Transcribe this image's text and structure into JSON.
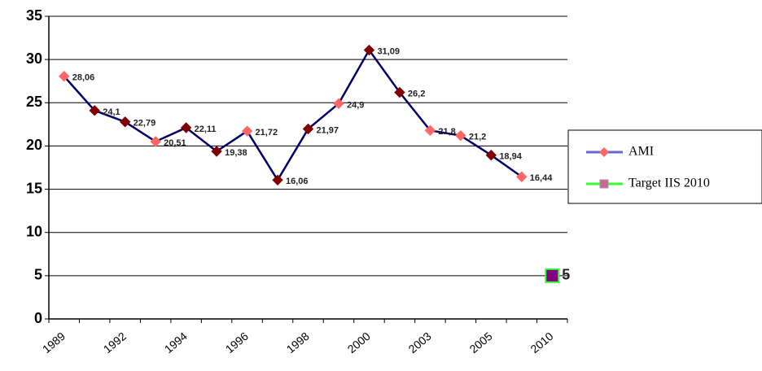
{
  "chart_data": {
    "type": "line",
    "categories": [
      "1989",
      null,
      "1992",
      null,
      "1994",
      null,
      "1996",
      null,
      "1998",
      null,
      "2000",
      null,
      "2003",
      null,
      "2005",
      null,
      "2010"
    ],
    "series": [
      {
        "name": "AMI",
        "color": "#000066",
        "legend_color": "#6666cc",
        "marker_colors": [
          "#ff6666",
          "#800000",
          "#800000",
          "#ff6666",
          "#800000",
          "#800000",
          "#ff6666",
          "#800000",
          "#800000",
          "#ff6666",
          "#800000",
          "#800000",
          "#ff6666",
          "#ff6666",
          "#800000",
          "#ff6666",
          null
        ],
        "values": [
          28.06,
          24.1,
          22.79,
          20.51,
          22.11,
          19.38,
          21.72,
          16.06,
          21.97,
          24.9,
          31.09,
          26.2,
          21.8,
          21.2,
          18.94,
          16.44,
          null
        ],
        "value_labels": [
          "28,06",
          "24,1",
          "22,79",
          "20,51",
          "22,11",
          "19,38",
          "21,72",
          "16,06",
          "21,97",
          "24,9",
          "31,09",
          "26,2",
          "21,8",
          "21,2",
          "18,94",
          "16,44",
          null
        ]
      },
      {
        "name": "Target IIS 2010",
        "color": "#33ff33",
        "legend_color": "#33ff33",
        "marker_colors": [
          null,
          null,
          null,
          null,
          null,
          null,
          null,
          null,
          null,
          null,
          null,
          null,
          null,
          null,
          null,
          null,
          "#800080"
        ],
        "values": [
          null,
          null,
          null,
          null,
          null,
          null,
          null,
          null,
          null,
          null,
          null,
          null,
          null,
          null,
          null,
          null,
          5
        ]
      }
    ],
    "ylim": [
      0,
      35
    ],
    "yticks": [
      0,
      5,
      10,
      15,
      20,
      25,
      30,
      35
    ],
    "grid": true
  }
}
